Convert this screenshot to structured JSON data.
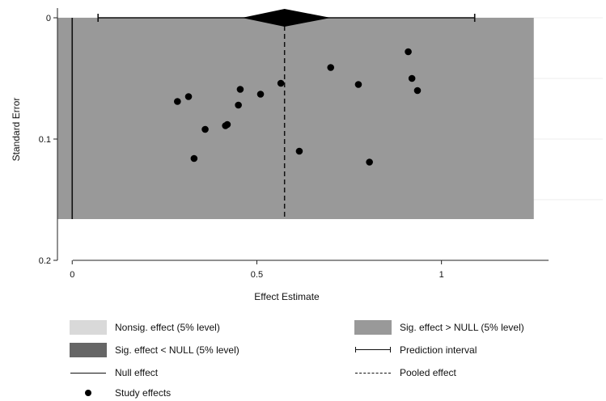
{
  "chart_data": {
    "type": "scatter",
    "subtype": "funnel-plot",
    "title": "",
    "xlabel": "Effect Estimate",
    "ylabel": "Standard Error",
    "xlim": [
      -0.04,
      1.29
    ],
    "ylim": [
      0,
      0.2
    ],
    "y_reversed": true,
    "x_ticks": [
      0,
      0.5,
      1
    ],
    "x_tick_labels": [
      "0",
      "0.5",
      "1"
    ],
    "y_ticks": [
      0,
      0.1,
      0.2
    ],
    "y_tick_labels": [
      "0",
      "0.1",
      "0.2"
    ],
    "null_effect": 0,
    "pooled_effect": 0.575,
    "pooled_ci": [
      0.46,
      0.7
    ],
    "prediction_interval": [
      0.07,
      1.09
    ],
    "sig_region": {
      "x": [
        -0.04,
        1.25
      ],
      "se_max": 0.166
    },
    "points": [
      {
        "x": 0.285,
        "y": 0.069
      },
      {
        "x": 0.315,
        "y": 0.065
      },
      {
        "x": 0.33,
        "y": 0.116
      },
      {
        "x": 0.36,
        "y": 0.092
      },
      {
        "x": 0.415,
        "y": 0.089
      },
      {
        "x": 0.42,
        "y": 0.088
      },
      {
        "x": 0.45,
        "y": 0.072
      },
      {
        "x": 0.455,
        "y": 0.059
      },
      {
        "x": 0.51,
        "y": 0.063
      },
      {
        "x": 0.565,
        "y": 0.054
      },
      {
        "x": 0.615,
        "y": 0.11
      },
      {
        "x": 0.7,
        "y": 0.041
      },
      {
        "x": 0.775,
        "y": 0.055
      },
      {
        "x": 0.805,
        "y": 0.119
      },
      {
        "x": 0.91,
        "y": 0.028
      },
      {
        "x": 0.92,
        "y": 0.05
      },
      {
        "x": 0.935,
        "y": 0.06
      }
    ],
    "colors": {
      "nonsig": "#d9d9d9",
      "sig_high": "#999999",
      "sig_low": "#666666",
      "points": "#000000",
      "lines": "#111111"
    },
    "legend": {
      "placement": "bottom",
      "items": [
        {
          "key": "nonsig",
          "label": "Nonsig. effect (5% level)"
        },
        {
          "key": "sig_high",
          "label": "Sig. effect > NULL (5% level)"
        },
        {
          "key": "sig_low",
          "label": "Sig. effect < NULL (5% level)"
        },
        {
          "key": "pi",
          "label": "Prediction interval"
        },
        {
          "key": "null",
          "label": "Null effect"
        },
        {
          "key": "pooled",
          "label": "Pooled effect"
        },
        {
          "key": "points",
          "label": "Study effects"
        }
      ]
    }
  }
}
